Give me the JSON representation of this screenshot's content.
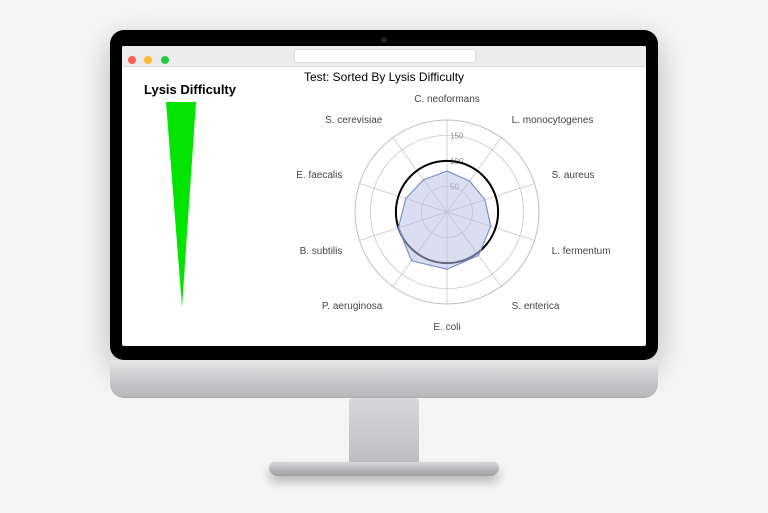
{
  "page_background": "#f5f5f5",
  "chart": {
    "title": "Test: Sorted By Lysis Difficulty",
    "title_fontsize": 12,
    "legend_title": "Lysis Difficulty",
    "wedge_color": "#00e400",
    "type": "radar",
    "background_color": "#ffffff",
    "grid_color": "#bfbfbf",
    "axis_color": "#bfbfbf",
    "ring_label_color": "#888888",
    "axis_label_color": "#444444",
    "axis_label_fontsize": 10,
    "ring_label_fontsize": 8,
    "reference_circle_color": "#000000",
    "reference_circle_width": 2,
    "reference_value": 100,
    "series_fill": "#b9c4e4",
    "series_fill_opacity": 0.55,
    "series_stroke": "#7b90cf",
    "series_stroke_width": 1.2,
    "r_max": 180,
    "rings": [
      50,
      100,
      150
    ],
    "axes": [
      {
        "label": "C. neoformans",
        "value": 80
      },
      {
        "label": "L. monocytogenes",
        "value": 75
      },
      {
        "label": "S. aureus",
        "value": 78
      },
      {
        "label": "L. fermentum",
        "value": 90
      },
      {
        "label": "S. enterica",
        "value": 105
      },
      {
        "label": "E. coli",
        "value": 112
      },
      {
        "label": "P. aeruginosa",
        "value": 118
      },
      {
        "label": "B. subtilis",
        "value": 100
      },
      {
        "label": "E. faecalis",
        "value": 85
      },
      {
        "label": "S. cerevisiae",
        "value": 78
      }
    ]
  }
}
